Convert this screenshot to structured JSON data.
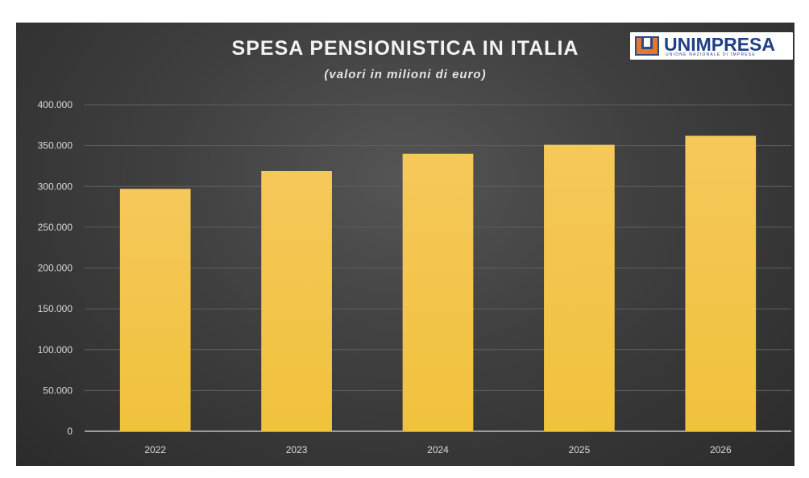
{
  "chart_data": {
    "type": "bar",
    "title": "SPESA PENSIONISTICA IN ITALIA",
    "subtitle": "(valori in milioni di euro)",
    "categories": [
      "2022",
      "2023",
      "2024",
      "2025",
      "2026"
    ],
    "series": [
      {
        "values": [
          297000,
          319000,
          340000,
          351000,
          362000
        ]
      }
    ],
    "ylim": [
      0,
      400000
    ],
    "yticks": [
      0,
      50000,
      100000,
      150000,
      200000,
      250000,
      300000,
      350000,
      400000
    ],
    "ytick_labels": [
      "0",
      "50.000",
      "100.000",
      "150.000",
      "200.000",
      "250.000",
      "300.000",
      "350.000",
      "400.000"
    ],
    "grid": true,
    "legend": "none",
    "bar_color": "#f2c649",
    "background_color": "#3f3f3f"
  },
  "logo": {
    "text": "UNIMPRESA",
    "subtext": "UNIONE NAZIONALE DI IMPRESE"
  }
}
